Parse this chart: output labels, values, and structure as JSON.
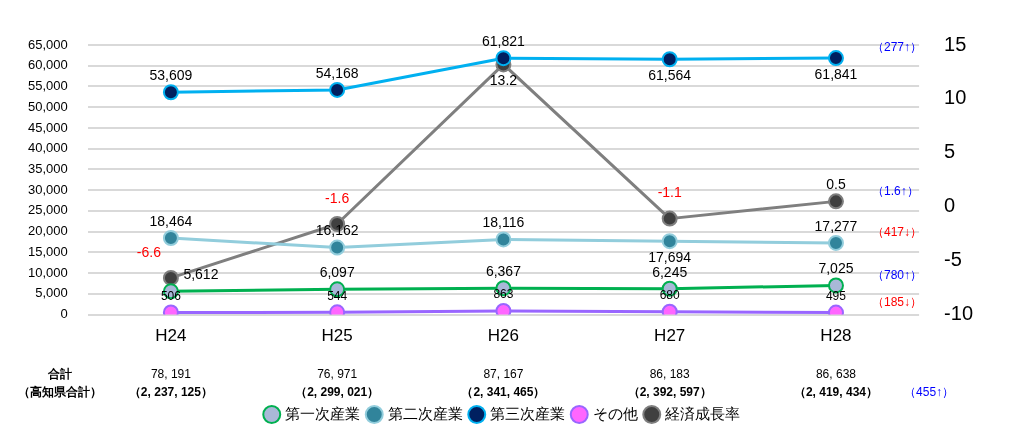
{
  "chart_data": {
    "type": "line",
    "categories": [
      "H24",
      "H25",
      "H26",
      "H27",
      "H28"
    ],
    "series": [
      {
        "name": "第一次産業",
        "color": "#00b050",
        "values": [
          5612,
          6097,
          6367,
          6245,
          7025
        ],
        "value_labels": [
          "5,612",
          "6,097",
          "6,367",
          "6,245",
          "7,025"
        ]
      },
      {
        "name": "第二次産業",
        "color": "#92cddc",
        "values": [
          18464,
          16162,
          18116,
          17694,
          17277
        ],
        "value_labels": [
          "18,464",
          "16,162",
          "18,116",
          "17,694",
          "17,277"
        ]
      },
      {
        "name": "第三次産業",
        "color": "#00b0f0",
        "values": [
          53609,
          54168,
          61821,
          61564,
          61841
        ],
        "value_labels": [
          "53,609",
          "54,168",
          "61,821",
          "61,564",
          "61,841"
        ]
      },
      {
        "name": "その他",
        "color": "#9966ff",
        "values": [
          506,
          544,
          863,
          680,
          495
        ],
        "value_labels": [
          "506",
          "544",
          "863",
          "680",
          "495"
        ]
      },
      {
        "name": "経済成長率",
        "color": "#7f7f7f",
        "values": [
          -6.6,
          -1.6,
          13.2,
          -1.1,
          0.5
        ],
        "value_labels": [
          "-6.6",
          "-1.6",
          "13.2",
          "-1.1",
          "0.5"
        ],
        "axis": "y2"
      }
    ],
    "ylim": [
      0,
      65000
    ],
    "yticks": [
      0,
      {
        "value": 5000,
        "label": "5,000"
      },
      {
        "value": 10000,
        "label": "10,000"
      },
      {
        "value": 15000,
        "label": "15,000"
      },
      {
        "value": 20000,
        "label": "20,000"
      },
      {
        "value": 25000,
        "label": "25,000"
      },
      {
        "value": 30000,
        "label": "30,000"
      },
      {
        "value": 35000,
        "label": "35,000"
      },
      {
        "value": 40000,
        "label": "40,000"
      },
      {
        "value": 45000,
        "label": "45,000"
      },
      {
        "value": 50000,
        "label": "50,000"
      },
      {
        "value": 55000,
        "label": "55,000"
      },
      {
        "value": 60000,
        "label": "60,000"
      },
      {
        "value": 65000,
        "label": "65,000"
      }
    ],
    "y2lim": [
      -10,
      15
    ],
    "y2ticks": [
      -10,
      -5,
      0,
      5,
      10,
      15
    ],
    "grid": "y",
    "legend": "bottom",
    "marker": "circle",
    "annotations": [
      "合計",
      "（高知県合計）",
      "78, 191",
      "（2, 237, 125）",
      "76, 971",
      "（2, 299, 021）",
      "87, 167",
      "（2, 341, 465）",
      "86, 183",
      "（2, 392, 597）",
      "86, 638",
      "（2, 419, 434）",
      "（780↑）",
      "（417↓）",
      "（277↑）",
      "（185↓）",
      "（1.6↑）",
      "（455↑）"
    ]
  }
}
